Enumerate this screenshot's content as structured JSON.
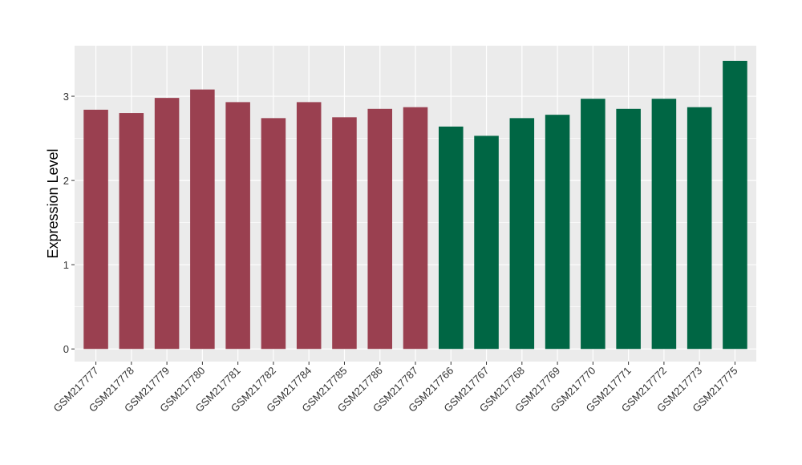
{
  "chart_data": {
    "type": "bar",
    "ylabel": "Expression Level",
    "xlabel": "",
    "title": "",
    "ylim": [
      -0.15,
      3.6
    ],
    "yticks": [
      0,
      1,
      2,
      3
    ],
    "grid": true,
    "colors": {
      "group1": "#9A4050",
      "group2": "#006644",
      "panel": "#EBEBEB",
      "gridline": "#FFFFFF",
      "tick_text": "#333333"
    },
    "categories": [
      "GSM217777",
      "GSM217778",
      "GSM217779",
      "GSM217780",
      "GSM217781",
      "GSM217782",
      "GSM217784",
      "GSM217785",
      "GSM217786",
      "GSM217787",
      "GSM217766",
      "GSM217767",
      "GSM217768",
      "GSM217769",
      "GSM217770",
      "GSM217771",
      "GSM217772",
      "GSM217773",
      "GSM217775"
    ],
    "values": [
      2.84,
      2.8,
      2.98,
      3.08,
      2.93,
      2.74,
      2.93,
      2.75,
      2.85,
      2.87,
      2.64,
      2.53,
      2.74,
      2.78,
      2.97,
      2.85,
      2.97,
      2.87,
      3.42
    ],
    "groups": [
      1,
      1,
      1,
      1,
      1,
      1,
      1,
      1,
      1,
      1,
      2,
      2,
      2,
      2,
      2,
      2,
      2,
      2,
      2
    ]
  }
}
